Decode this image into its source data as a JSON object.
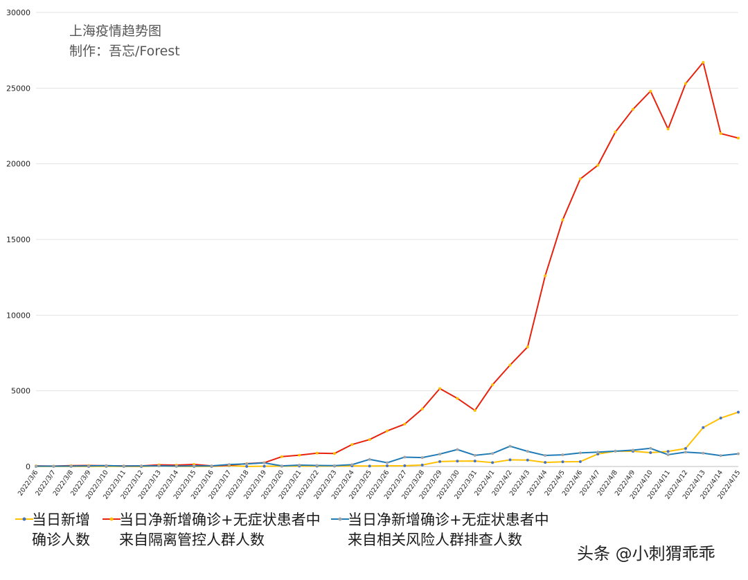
{
  "title": "上海疫情趋势图",
  "subtitle": "制作：吾忘/Forest",
  "watermark": "头条 @小刺猬乖乖",
  "chart_data": {
    "type": "line",
    "categories": [
      "2022/3/6",
      "2022/3/7",
      "2022/3/8",
      "2022/3/9",
      "2022/3/10",
      "2022/3/11",
      "2022/3/12",
      "2022/3/13",
      "2022/3/14",
      "2022/3/15",
      "2022/3/16",
      "2022/3/17",
      "2022/3/18",
      "2022/3/19",
      "2022/3/20",
      "2022/3/21",
      "2022/3/22",
      "2022/3/23",
      "2022/3/24",
      "2022/3/25",
      "2022/3/26",
      "2022/3/27",
      "2022/3/28",
      "2022/3/29",
      "2022/3/30",
      "2022/3/31",
      "2022/4/1",
      "2022/4/2",
      "2022/4/3",
      "2022/4/4",
      "2022/4/5",
      "2022/4/6",
      "2022/4/7",
      "2022/4/8",
      "2022/4/9",
      "2022/4/10",
      "2022/4/11",
      "2022/4/12",
      "2022/4/13",
      "2022/4/14",
      "2022/4/15"
    ],
    "y_ticks": [
      "0",
      "5000",
      "10000",
      "15000",
      "20000",
      "25000",
      "30000"
    ],
    "ylim": [
      0,
      30000
    ],
    "grid": true,
    "legend_position": "bottom",
    "series": [
      {
        "name": "当日新增确诊人数",
        "legend_lines": [
          "当日新增",
          "确诊人数"
        ],
        "color": "#FFC000",
        "values": [
          3,
          4,
          3,
          5,
          11,
          5,
          1,
          41,
          9,
          5,
          8,
          57,
          8,
          17,
          24,
          31,
          24,
          29,
          38,
          31,
          45,
          50,
          96,
          326,
          355,
          358,
          260,
          438,
          425,
          268,
          311,
          322,
          824,
          1015,
          1006,
          914,
          994,
          1189,
          2573,
          3200,
          3590
        ]
      },
      {
        "name": "当日净新增确诊+无症状患者中来自隔离管控人群人数",
        "legend_lines": [
          "当日净新增确诊+无症状患者中",
          "来自隔离管控人群人数"
        ],
        "color": "#E8210D",
        "values": [
          40,
          30,
          60,
          70,
          50,
          40,
          40,
          110,
          90,
          140,
          40,
          80,
          190,
          250,
          650,
          750,
          880,
          860,
          1450,
          1780,
          2350,
          2800,
          3800,
          5150,
          4500,
          3700,
          5400,
          6700,
          7900,
          12600,
          16300,
          19000,
          19900,
          22100,
          23600,
          24800,
          22300,
          25300,
          26700,
          22000,
          21700
        ]
      },
      {
        "name": "当日净新增确诊+无症状患者中来自相关风险人群排查人数",
        "legend_lines": [
          "当日净新增确诊+无症状患者中",
          "来自相关风险人群排查人数"
        ],
        "color": "#1F7BB6",
        "values": [
          20,
          20,
          30,
          40,
          60,
          30,
          40,
          40,
          30,
          40,
          40,
          130,
          170,
          240,
          40,
          90,
          70,
          60,
          120,
          470,
          250,
          620,
          590,
          820,
          1120,
          740,
          860,
          1340,
          1000,
          730,
          770,
          900,
          950,
          1010,
          1080,
          1200,
          780,
          950,
          880,
          720,
          840
        ]
      }
    ]
  }
}
